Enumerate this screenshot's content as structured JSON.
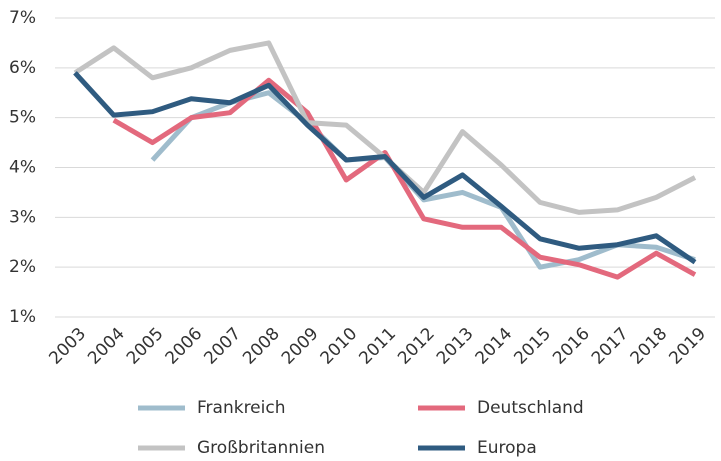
{
  "chart_data": {
    "type": "line",
    "categories": [
      "2003",
      "2004",
      "2005",
      "2006",
      "2007",
      "2008",
      "2009",
      "2010",
      "2011",
      "2012",
      "2013",
      "2014",
      "2015",
      "2016",
      "2017",
      "2018",
      "2019"
    ],
    "series": [
      {
        "name": "Frankreich",
        "color": "#9fbccc",
        "values": [
          null,
          null,
          4.15,
          5.0,
          5.3,
          5.5,
          4.9,
          4.15,
          4.2,
          3.35,
          3.5,
          3.2,
          2.0,
          2.15,
          2.45,
          2.4,
          2.15
        ]
      },
      {
        "name": "Deutschland",
        "color": "#e3697d",
        "values": [
          null,
          4.95,
          4.5,
          5.0,
          5.1,
          5.75,
          5.1,
          3.75,
          4.3,
          2.97,
          2.8,
          2.8,
          2.2,
          2.05,
          1.8,
          2.28,
          1.85
        ]
      },
      {
        "name": "Großbritannien",
        "color": "#c3c3c3",
        "values": [
          5.9,
          6.4,
          5.8,
          6.0,
          6.35,
          6.5,
          4.9,
          4.85,
          4.2,
          3.5,
          4.72,
          4.05,
          3.3,
          3.1,
          3.15,
          3.4,
          3.8
        ]
      },
      {
        "name": "Europa",
        "color": "#2f5b80",
        "values": [
          5.9,
          5.05,
          5.12,
          5.38,
          5.3,
          5.65,
          4.85,
          4.15,
          4.22,
          3.4,
          3.85,
          3.22,
          2.57,
          2.38,
          2.45,
          2.63,
          2.1
        ]
      }
    ],
    "ylim": [
      1,
      7
    ],
    "yticks": [
      {
        "value": 1,
        "label": "1%"
      },
      {
        "value": 2,
        "label": "2%"
      },
      {
        "value": 3,
        "label": "3%"
      },
      {
        "value": 4,
        "label": "4%"
      },
      {
        "value": 5,
        "label": "5%"
      },
      {
        "value": 6,
        "label": "6%"
      },
      {
        "value": 7,
        "label": "7%"
      }
    ],
    "grid": true
  }
}
